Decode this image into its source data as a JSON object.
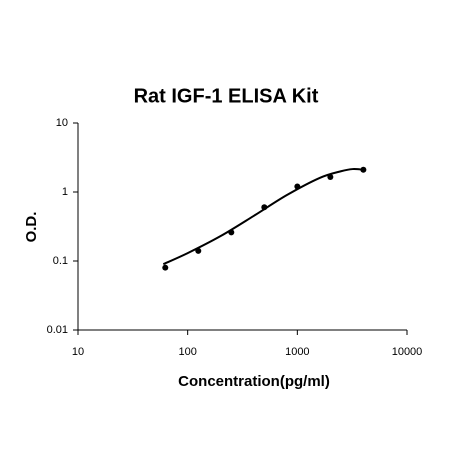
{
  "chart_data": {
    "type": "scatter",
    "title": "Rat IGF-1 ELISA Kit",
    "xlabel": "Concentration(pg/ml)",
    "ylabel": "O.D.",
    "xscale": "log",
    "yscale": "log",
    "xlim": [
      10,
      10000
    ],
    "xticks": [
      10,
      100,
      1000,
      10000
    ],
    "ylim": [
      0.01,
      10
    ],
    "yticks": [
      0.01,
      0.1,
      1,
      10
    ],
    "x": [
      62.5,
      125,
      250,
      500,
      1000,
      2000,
      4000
    ],
    "series": [
      {
        "color": "#000000",
        "values": [
          0.08,
          0.14,
          0.26,
          0.6,
          1.2,
          1.65,
          2.1
        ]
      }
    ],
    "fit": {
      "color": "#000000",
      "x": [
        60,
        100,
        200,
        400,
        800,
        1600,
        2500,
        3200,
        4000
      ],
      "values": [
        0.09,
        0.13,
        0.23,
        0.45,
        0.9,
        1.6,
        2.0,
        2.15,
        2.1
      ]
    }
  }
}
